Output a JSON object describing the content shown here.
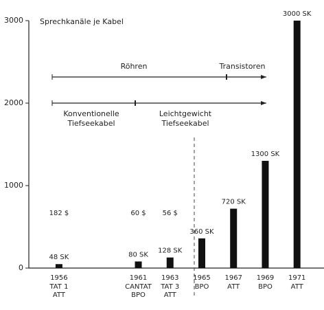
{
  "chart_data": {
    "type": "bar",
    "y_label": "Sprechkanäle je Kabel",
    "x": [
      1956,
      1961,
      1963,
      1965,
      1967,
      1969,
      1971
    ],
    "cables": [
      "TAT 1",
      "CANTAT",
      "TAT 3",
      null,
      null,
      null,
      null
    ],
    "operators": [
      "ATT",
      "BPO",
      "ATT",
      "BPO",
      "ATT",
      "BPO",
      "ATT"
    ],
    "values": [
      48,
      80,
      128,
      360,
      720,
      1300,
      3000
    ],
    "value_labels": [
      "48 SK",
      "80 SK",
      "128 SK",
      "360 SK",
      "720 SK",
      "1300 SK",
      "3000 SK"
    ],
    "costs": [
      "182 $",
      "60 $",
      "56 $",
      null,
      null,
      null,
      null
    ],
    "color": "#111111",
    "xlim": [
      1954.1,
      1972.7
    ],
    "ylim": [
      0,
      3000
    ],
    "yticks": [
      0,
      1000,
      2000,
      3000
    ],
    "annotations": {
      "tubes": "Röhren",
      "transistors": "Transistoren",
      "conventional": [
        "Konventionelle",
        "Tiefseekabel"
      ],
      "lightweight": [
        "Leichtgewicht",
        "Tiefseekabel"
      ]
    }
  }
}
